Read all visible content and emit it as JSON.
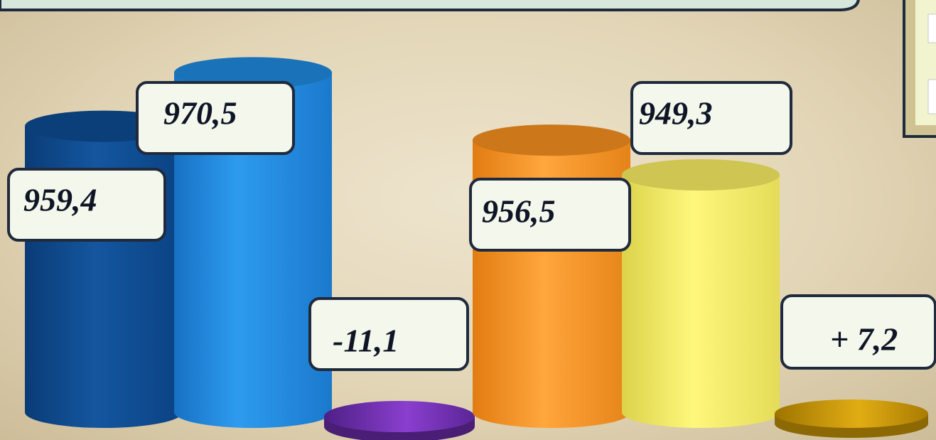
{
  "chart_data": {
    "type": "bar",
    "title": "",
    "xlabel": "",
    "ylabel": "",
    "groups": [
      {
        "bars": [
          {
            "value": 959.4,
            "label": "959,4",
            "color": "#0d4a8e"
          },
          {
            "value": 970.5,
            "label": "970,5",
            "color": "#1e86d8"
          }
        ],
        "difference": {
          "value": -11.1,
          "label": "-11,1",
          "color": "#6a2ba6"
        }
      },
      {
        "bars": [
          {
            "value": 956.5,
            "label": "956,5",
            "color": "#f08c1e"
          },
          {
            "value": 949.3,
            "label": "949,3",
            "color": "#f2e860"
          }
        ],
        "difference": {
          "value": 7.2,
          "label": "+ 7,2",
          "color": "#c99606"
        }
      }
    ]
  },
  "colors": {
    "background": "#e3d6b7",
    "label_box_fill": "#f3f7ec",
    "label_box_border": "#1f2a3c"
  }
}
